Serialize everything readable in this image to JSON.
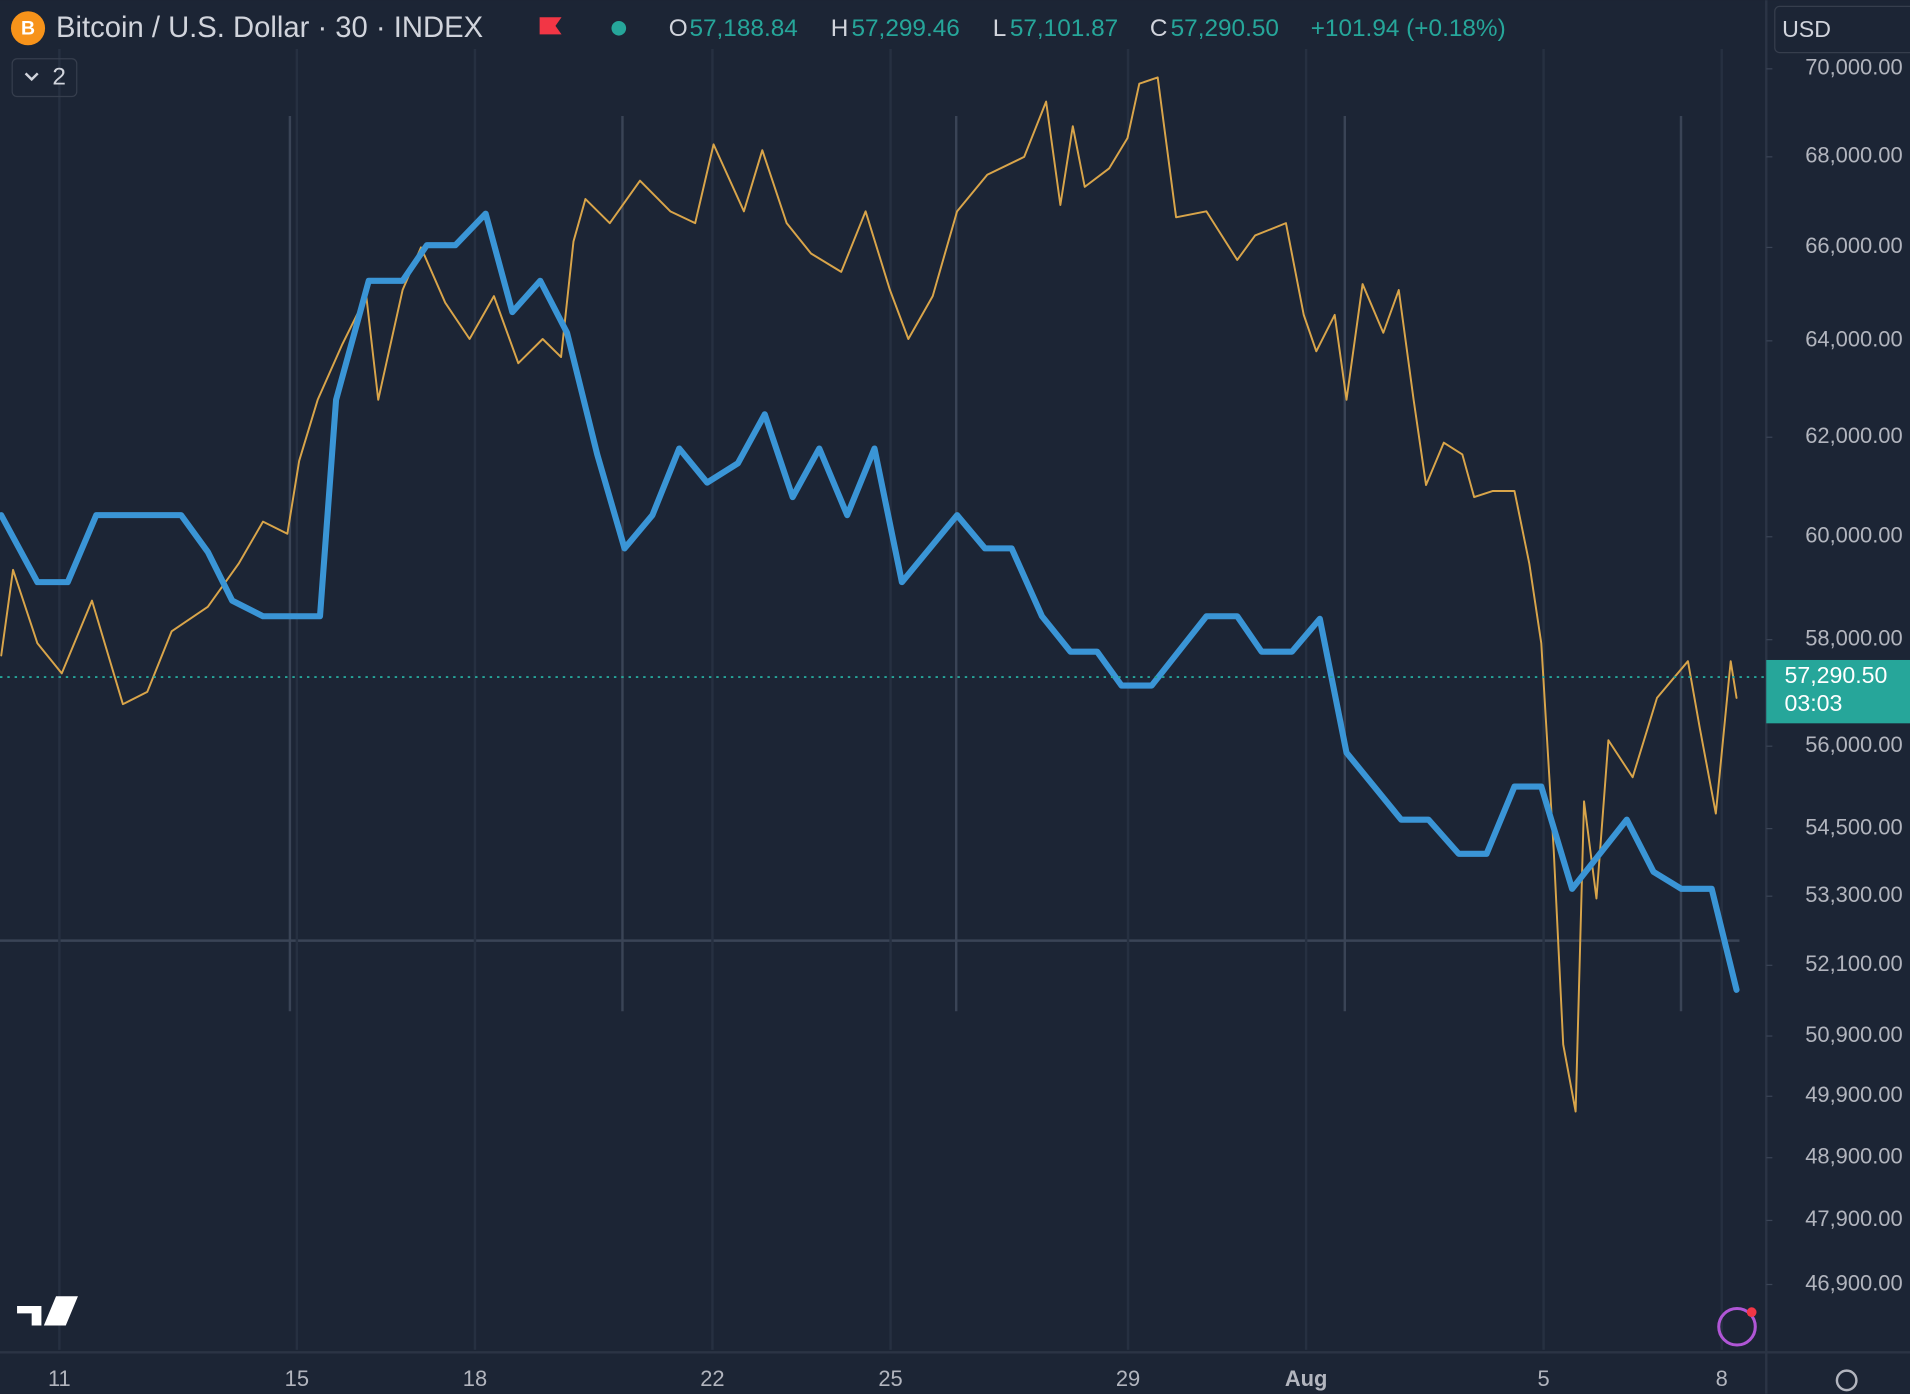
{
  "header": {
    "symbol": "Bitcoin / U.S. Dollar · 30 · INDEX",
    "ohlc": [
      {
        "label": "O",
        "value": "57,188.84"
      },
      {
        "label": "H",
        "value": "57,299.46"
      },
      {
        "label": "L",
        "value": "57,101.87"
      },
      {
        "label": "C",
        "value": "57,290.50"
      }
    ],
    "change": "+101.94 (+0.18%)",
    "indicators_count": "2",
    "currency": "USD"
  },
  "chart_data": {
    "type": "line",
    "log_scale": true,
    "xgrid": true,
    "xlim": [
      10.0,
      39.75
    ],
    "xticks": [
      11,
      15,
      18,
      22,
      25,
      29,
      {
        "value": 32,
        "label": "Aug"
      },
      {
        "value": 36,
        "label": "5"
      },
      {
        "value": 39,
        "label": "8"
      }
    ],
    "ylim": [
      45900,
      71600
    ],
    "yticks": [
      {
        "value": 70000,
        "label": "70,000.00"
      },
      {
        "value": 68000,
        "label": "68,000.00"
      },
      {
        "value": 66000,
        "label": "66,000.00"
      },
      {
        "value": 64000,
        "label": "64,000.00"
      },
      {
        "value": 62000,
        "label": "62,000.00"
      },
      {
        "value": 60000,
        "label": "60,000.00"
      },
      {
        "value": 58000,
        "label": "58,000.00"
      },
      {
        "value": 56000,
        "label": "56,000.00"
      },
      {
        "value": 54500,
        "label": "54,500.00"
      },
      {
        "value": 53300,
        "label": "53,300.00"
      },
      {
        "value": 52100,
        "label": "52,100.00"
      },
      {
        "value": 50900,
        "label": "50,900.00"
      },
      {
        "value": 49900,
        "label": "49,900.00"
      },
      {
        "value": 48900,
        "label": "48,900.00"
      },
      {
        "value": 47900,
        "label": "47,900.00"
      },
      {
        "value": 46900,
        "label": "46,900.00"
      }
    ],
    "last_price": {
      "value": 57290.5,
      "label": "57,290.50"
    },
    "countdown": "03:03",
    "series": [
      {
        "color": "#d9a54a",
        "width": 1.6,
        "x": [
          10.02,
          10.22,
          10.63,
          11.04,
          11.55,
          12.07,
          12.48,
          12.89,
          13.5,
          14.02,
          14.43,
          14.84,
          15.04,
          15.35,
          15.76,
          16.17,
          16.37,
          16.78,
          17.09,
          17.5,
          17.91,
          18.32,
          18.73,
          19.14,
          19.45,
          19.66,
          19.86,
          20.27,
          20.78,
          21.29,
          21.71,
          22.02,
          22.53,
          22.84,
          23.25,
          23.66,
          24.17,
          24.58,
          24.99,
          25.3,
          25.71,
          26.12,
          26.63,
          27.25,
          27.62,
          27.86,
          28.07,
          28.27,
          28.68,
          28.99,
          29.19,
          29.5,
          29.81,
          30.32,
          30.84,
          31.14,
          31.66,
          31.96,
          32.17,
          32.48,
          32.68,
          32.95,
          33.3,
          33.56,
          33.81,
          34.02,
          34.32,
          34.63,
          34.83,
          35.14,
          35.51,
          35.76,
          35.96,
          36.17,
          36.33,
          36.54,
          36.68,
          36.89,
          37.09,
          37.5,
          37.91,
          38.43,
          38.63,
          38.9,
          39.15,
          39.25
        ],
        "values": [
          57700,
          59350,
          57930,
          57360,
          58750,
          56780,
          57010,
          58160,
          58630,
          59470,
          60300,
          60060,
          61520,
          62770,
          63910,
          64950,
          62770,
          65080,
          66000,
          64810,
          64040,
          64950,
          63530,
          64040,
          63660,
          66130,
          67060,
          66530,
          67470,
          66790,
          66530,
          68280,
          66790,
          68150,
          66530,
          65870,
          65470,
          66790,
          65080,
          64040,
          64950,
          66790,
          67600,
          68000,
          69250,
          66930,
          68690,
          67330,
          67740,
          68420,
          69660,
          69800,
          66660,
          66790,
          65730,
          66260,
          66530,
          64550,
          63780,
          64550,
          62770,
          65210,
          64170,
          65080,
          62770,
          61030,
          61890,
          61650,
          60790,
          60910,
          60910,
          59470,
          57930,
          54120,
          50760,
          49650,
          54990,
          53260,
          56110,
          55430,
          56900,
          57590,
          56340,
          54770,
          57590,
          56900
        ]
      },
      {
        "color": "#3a95d6",
        "width": 5,
        "x": [
          10.02,
          10.63,
          11.14,
          11.62,
          13.05,
          13.5,
          13.91,
          14.43,
          15.39,
          15.66,
          16.21,
          16.78,
          17.19,
          17.67,
          18.18,
          18.63,
          19.1,
          19.55,
          20.06,
          20.52,
          20.99,
          21.44,
          21.91,
          22.43,
          22.88,
          23.35,
          23.8,
          24.27,
          24.73,
          25.19,
          26.12,
          26.59,
          27.04,
          27.55,
          28.03,
          28.48,
          28.89,
          29.4,
          30.32,
          30.84,
          31.25,
          31.76,
          32.23,
          32.68,
          33.6,
          34.06,
          34.57,
          35.04,
          35.51,
          35.96,
          36.48,
          37.4,
          37.85,
          38.32,
          38.83,
          39.25
        ],
        "values": [
          60430,
          59110,
          59110,
          60430,
          60430,
          59700,
          58750,
          58450,
          58450,
          62770,
          65280,
          65280,
          66050,
          66050,
          66740,
          64610,
          65280,
          64170,
          61650,
          59770,
          60430,
          61770,
          61080,
          61470,
          62470,
          60790,
          61770,
          60430,
          61770,
          59110,
          60430,
          59770,
          59770,
          58450,
          57770,
          57770,
          57130,
          57130,
          58450,
          58450,
          57770,
          57770,
          58400,
          55880,
          54660,
          54660,
          54050,
          54050,
          55260,
          55260,
          53430,
          54660,
          53730,
          53430,
          53430,
          51680
        ]
      }
    ]
  }
}
